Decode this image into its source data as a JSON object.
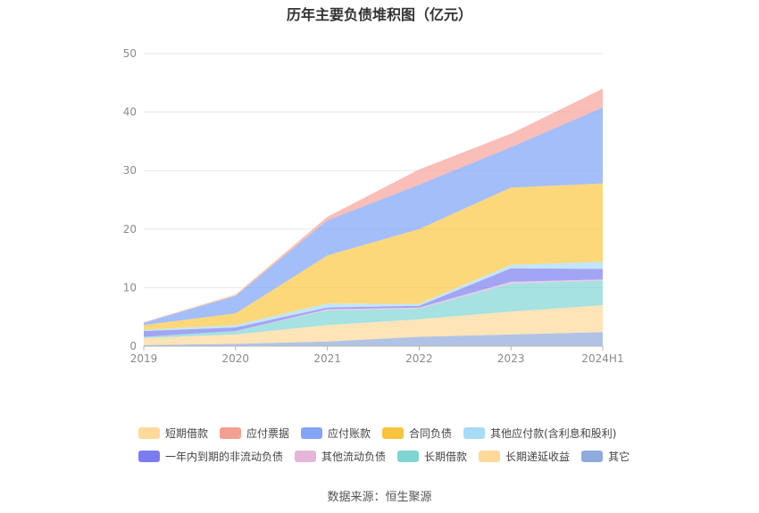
{
  "chart_data": {
    "type": "area",
    "stacked": true,
    "title": "历年主要负债堆积图（亿元）",
    "categories": [
      "2019",
      "2020",
      "2021",
      "2022",
      "2023",
      "2024H1"
    ],
    "ylim": [
      0,
      50
    ],
    "yticks": [
      0,
      10,
      20,
      30,
      40,
      50
    ],
    "grid": true,
    "legend_position": "bottom",
    "series": [
      {
        "name": "其它",
        "color": "#8faadc",
        "values": [
          0.2,
          0.4,
          0.8,
          1.6,
          2.0,
          2.4
        ]
      },
      {
        "name": "长期递延收益",
        "color": "#ffd99a",
        "values": [
          1.2,
          1.6,
          2.8,
          3.0,
          3.9,
          4.6
        ]
      },
      {
        "name": "长期借款",
        "color": "#7fd6d4",
        "values": [
          0.2,
          0.6,
          2.5,
          1.8,
          4.8,
          4.2
        ]
      },
      {
        "name": "其他流动负债",
        "color": "#e8b4d8",
        "values": [
          0.0,
          0.0,
          0.2,
          0.2,
          0.3,
          0.2
        ]
      },
      {
        "name": "一年内到期的非流动负债",
        "color": "#7b7fee",
        "values": [
          1.0,
          0.6,
          0.3,
          0.3,
          2.3,
          1.8
        ]
      },
      {
        "name": "其他应付款(含利息和股利)",
        "color": "#a8dcf6",
        "values": [
          0.2,
          0.4,
          0.7,
          0.3,
          0.6,
          1.2
        ]
      },
      {
        "name": "合同负债",
        "color": "#fbc842",
        "values": [
          0.8,
          2.0,
          8.2,
          12.8,
          13.2,
          13.4
        ]
      },
      {
        "name": "应付账款",
        "color": "#7ea2f8",
        "values": [
          0.4,
          3.0,
          6.0,
          7.6,
          6.9,
          13.0
        ]
      },
      {
        "name": "应付票据",
        "color": "#f6a398",
        "values": [
          0.1,
          0.1,
          0.6,
          2.6,
          2.3,
          3.2
        ]
      },
      {
        "name": "短期借款",
        "color": "#ffd9a0",
        "values": [
          0.0,
          0.2,
          0.0,
          0.0,
          0.0,
          0.0
        ]
      }
    ]
  },
  "legend": {
    "rows": [
      [
        "短期借款",
        "应付票据",
        "应付账款",
        "合同负债",
        "其他应付款(含利息和股利)"
      ],
      [
        "一年内到期的非流动负债",
        "其他流动负债",
        "长期借款",
        "长期递延收益",
        "其它"
      ]
    ],
    "colors": {
      "短期借款": "#ffd99a",
      "应付票据": "#f4a091",
      "应付账款": "#84a5f4",
      "合同负债": "#f8c43e",
      "其他应付款(含利息和股利)": "#a6dcf6",
      "一年内到期的非流动负债": "#7b7cf0",
      "其他流动负债": "#e6b6da",
      "长期借款": "#80d4d2",
      "长期递延收益": "#ffd99a",
      "其它": "#8faadc"
    }
  },
  "source": "数据来源：恒生聚源"
}
